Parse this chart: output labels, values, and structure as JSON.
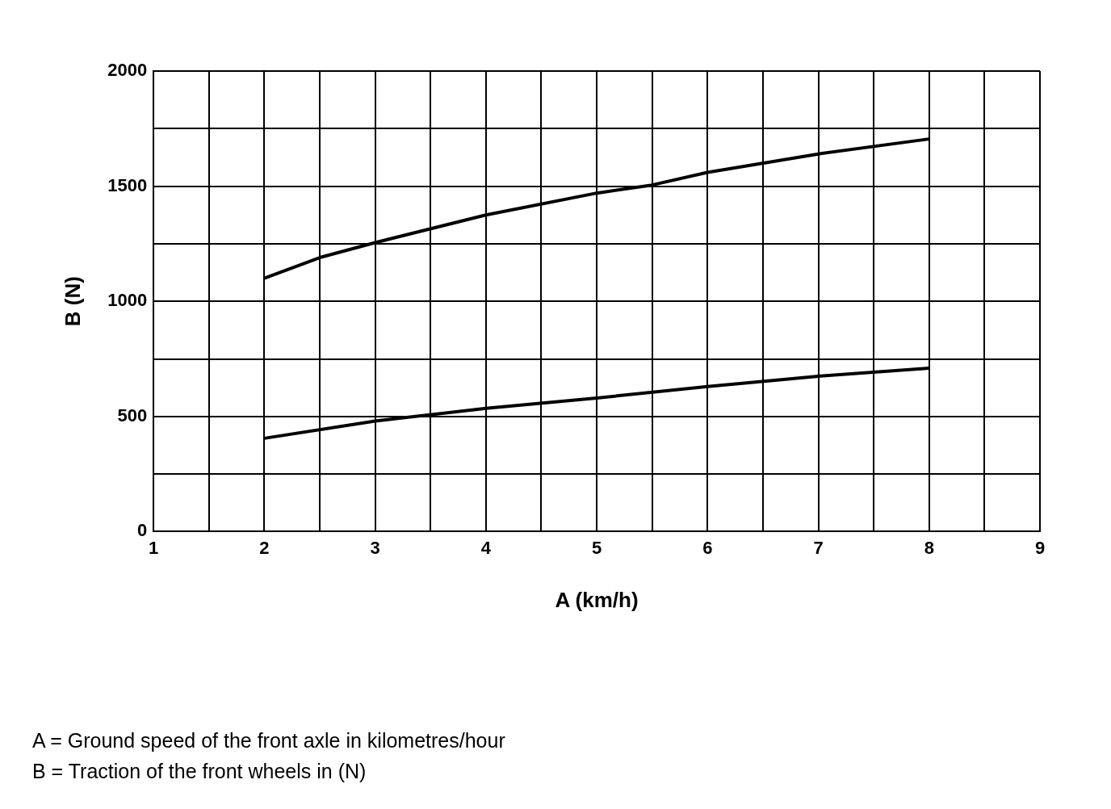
{
  "chart_data": {
    "type": "line",
    "xlabel": "A (km/h)",
    "ylabel": "B (N)",
    "xlim": [
      1,
      9
    ],
    "xticks": [
      1,
      {
        "value": 1.5,
        "label": null
      },
      2,
      {
        "value": 2.5,
        "label": null
      },
      3,
      {
        "value": 3.5,
        "label": null
      },
      4,
      {
        "value": 4.5,
        "label": null
      },
      5,
      {
        "value": 5.5,
        "label": null
      },
      6,
      {
        "value": 6.5,
        "label": null
      },
      7,
      {
        "value": 7.5,
        "label": null
      },
      8,
      {
        "value": 8.5,
        "label": null
      },
      9
    ],
    "ylim": [
      0,
      2000
    ],
    "yticks": [
      0,
      {
        "value": 250,
        "label": null
      },
      500,
      {
        "value": 750,
        "label": null
      },
      1000,
      {
        "value": 1250,
        "label": null
      },
      1500,
      {
        "value": 1750,
        "label": null
      },
      2000
    ],
    "grid": true,
    "legend": false,
    "marker": "none",
    "line_style": "solid",
    "series": [
      {
        "color": "#000000",
        "x": [
          2,
          2.5,
          3,
          4,
          5,
          5.5,
          6,
          7,
          8
        ],
        "values": [
          1100,
          1190,
          1255,
          1375,
          1470,
          1505,
          1560,
          1640,
          1705
        ]
      },
      {
        "color": "#000000",
        "x": [
          2,
          3,
          4,
          5,
          6,
          7,
          8
        ],
        "values": [
          405,
          480,
          535,
          580,
          630,
          675,
          710
        ]
      }
    ],
    "annotations": [
      "A = Ground speed of the front axle in kilometres/hour",
      "B = Traction of the front wheels in (N)"
    ]
  }
}
